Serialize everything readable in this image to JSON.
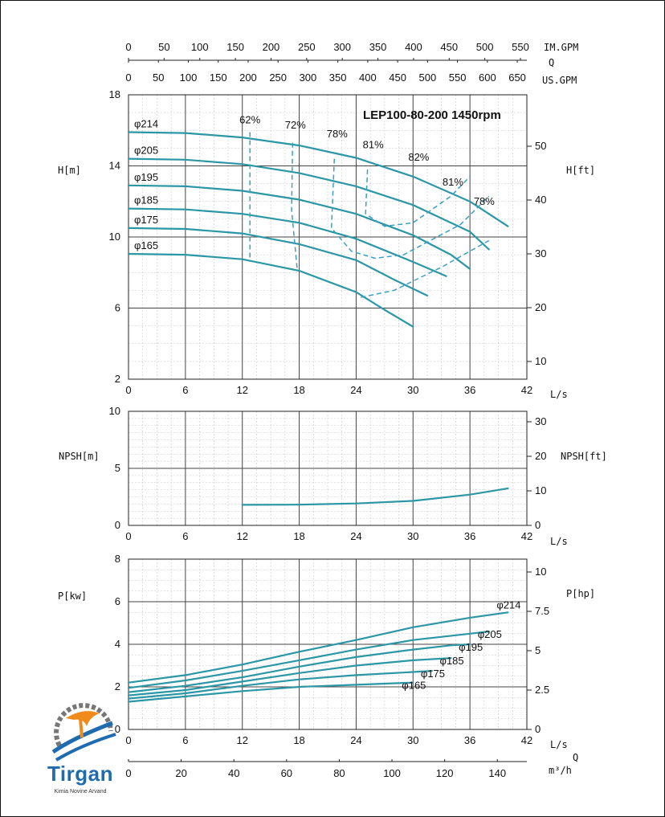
{
  "colors": {
    "curve": "#2b97a6",
    "efficiency": "#3a9fc4",
    "grid": "#444444"
  },
  "branding": {
    "name": "Tirgan",
    "subtitle": "Kimia Novine Arvand",
    "logo_icon": "gear-swoosh-logo"
  },
  "chart_data": [
    {
      "type": "line",
      "title": "LEP100-80-200 1450rpm",
      "xlabel": "L/s",
      "ylabel_left": "H[m]",
      "ylabel_right": "H[ft]",
      "xlim": [
        0,
        42
      ],
      "ylim": [
        2,
        18
      ],
      "x_ticks": [
        0,
        6,
        12,
        18,
        24,
        30,
        36,
        42
      ],
      "y_ticks": [
        2,
        6,
        10,
        14,
        18
      ],
      "y_right_ticks": [
        10,
        20,
        30,
        40,
        50
      ],
      "top_axes": {
        "imperial_label": "IM.GPM",
        "q_label": "Q",
        "us_label": "US.GPM",
        "im_ticks": [
          0,
          50,
          100,
          150,
          200,
          250,
          300,
          350,
          400,
          450,
          500,
          550
        ],
        "us_ticks": [
          0,
          50,
          100,
          150,
          200,
          250,
          300,
          350,
          400,
          450,
          500,
          550,
          600,
          650
        ]
      },
      "grid": true,
      "series": [
        {
          "name": "φ214",
          "points": [
            [
              0,
              15.9
            ],
            [
              6,
              15.85
            ],
            [
              12,
              15.6
            ],
            [
              18,
              15.15
            ],
            [
              24,
              14.45
            ],
            [
              30,
              13.4
            ],
            [
              36,
              12.0
            ],
            [
              40,
              10.6
            ]
          ]
        },
        {
          "name": "φ205",
          "points": [
            [
              0,
              14.4
            ],
            [
              6,
              14.35
            ],
            [
              12,
              14.1
            ],
            [
              18,
              13.6
            ],
            [
              24,
              12.85
            ],
            [
              30,
              11.8
            ],
            [
              36,
              10.3
            ],
            [
              38,
              9.3
            ]
          ]
        },
        {
          "name": "φ195",
          "points": [
            [
              0,
              12.9
            ],
            [
              6,
              12.85
            ],
            [
              12,
              12.6
            ],
            [
              18,
              12.1
            ],
            [
              24,
              11.3
            ],
            [
              30,
              10.1
            ],
            [
              34,
              9.0
            ],
            [
              36,
              8.2
            ]
          ]
        },
        {
          "name": "φ185",
          "points": [
            [
              0,
              11.6
            ],
            [
              6,
              11.55
            ],
            [
              12,
              11.3
            ],
            [
              18,
              10.8
            ],
            [
              24,
              9.9
            ],
            [
              30,
              8.6
            ],
            [
              33.5,
              7.8
            ]
          ]
        },
        {
          "name": "φ175",
          "points": [
            [
              0,
              10.5
            ],
            [
              6,
              10.45
            ],
            [
              12,
              10.2
            ],
            [
              18,
              9.6
            ],
            [
              24,
              8.7
            ],
            [
              28,
              7.6
            ],
            [
              31.5,
              6.7
            ]
          ]
        },
        {
          "name": "φ165",
          "points": [
            [
              0,
              9.05
            ],
            [
              6,
              9.0
            ],
            [
              12,
              8.75
            ],
            [
              18,
              8.1
            ],
            [
              24,
              6.9
            ],
            [
              27,
              5.9
            ],
            [
              30,
              4.95
            ]
          ]
        }
      ],
      "efficiency_labels": [
        "62%",
        "72%",
        "78%",
        "81%",
        "82%",
        "81%",
        "78%"
      ]
    },
    {
      "type": "line",
      "xlabel": "L/s",
      "ylabel_left": "NPSH[m]",
      "ylabel_right": "NPSH[ft]",
      "xlim": [
        0,
        42
      ],
      "ylim": [
        0,
        10
      ],
      "x_ticks": [
        0,
        6,
        12,
        18,
        24,
        30,
        36,
        42
      ],
      "y_ticks": [
        0,
        5,
        10
      ],
      "y_right_ticks": [
        0,
        10,
        20,
        30
      ],
      "grid": true,
      "series": [
        {
          "points": [
            [
              12,
              1.8
            ],
            [
              18,
              1.82
            ],
            [
              24,
              1.92
            ],
            [
              30,
              2.15
            ],
            [
              36,
              2.7
            ],
            [
              40,
              3.25
            ]
          ]
        }
      ]
    },
    {
      "type": "line",
      "xlabel": "L/s",
      "ylabel_left": "P[kw]",
      "ylabel_right": "P[hp]",
      "xlim": [
        0,
        42
      ],
      "ylim": [
        0,
        8
      ],
      "x_ticks": [
        0,
        6,
        12,
        18,
        24,
        30,
        36,
        42
      ],
      "y_ticks": [
        0,
        2,
        4,
        6,
        8
      ],
      "y_right_ticks": [
        "0",
        "2.5",
        "5",
        "7.5",
        "10"
      ],
      "bottom_axis": {
        "q_label": "Q",
        "unit": "m³/h",
        "ticks": [
          0,
          20,
          40,
          60,
          80,
          100,
          120,
          140
        ]
      },
      "grid": true,
      "series": [
        {
          "name": "φ214",
          "points": [
            [
              0,
              2.2
            ],
            [
              6,
              2.55
            ],
            [
              12,
              3.05
            ],
            [
              18,
              3.65
            ],
            [
              24,
              4.2
            ],
            [
              30,
              4.8
            ],
            [
              36,
              5.25
            ],
            [
              40,
              5.5
            ]
          ]
        },
        {
          "name": "φ205",
          "points": [
            [
              0,
              1.95
            ],
            [
              6,
              2.3
            ],
            [
              12,
              2.75
            ],
            [
              18,
              3.25
            ],
            [
              24,
              3.75
            ],
            [
              30,
              4.2
            ],
            [
              36,
              4.5
            ],
            [
              38,
              4.6
            ]
          ]
        },
        {
          "name": "φ195",
          "points": [
            [
              0,
              1.75
            ],
            [
              6,
              2.05
            ],
            [
              12,
              2.45
            ],
            [
              18,
              2.95
            ],
            [
              24,
              3.4
            ],
            [
              30,
              3.75
            ],
            [
              34,
              3.95
            ],
            [
              36,
              4.0
            ]
          ]
        },
        {
          "name": "φ185",
          "points": [
            [
              0,
              1.6
            ],
            [
              6,
              1.85
            ],
            [
              12,
              2.25
            ],
            [
              18,
              2.65
            ],
            [
              24,
              3.0
            ],
            [
              30,
              3.25
            ],
            [
              34,
              3.35
            ]
          ]
        },
        {
          "name": "φ175",
          "points": [
            [
              0,
              1.45
            ],
            [
              6,
              1.7
            ],
            [
              12,
              2.05
            ],
            [
              18,
              2.35
            ],
            [
              24,
              2.55
            ],
            [
              30,
              2.7
            ],
            [
              32,
              2.75
            ]
          ]
        },
        {
          "name": "φ165",
          "points": [
            [
              0,
              1.3
            ],
            [
              6,
              1.55
            ],
            [
              12,
              1.8
            ],
            [
              18,
              2.0
            ],
            [
              24,
              2.1
            ],
            [
              30,
              2.2
            ]
          ]
        }
      ]
    }
  ]
}
